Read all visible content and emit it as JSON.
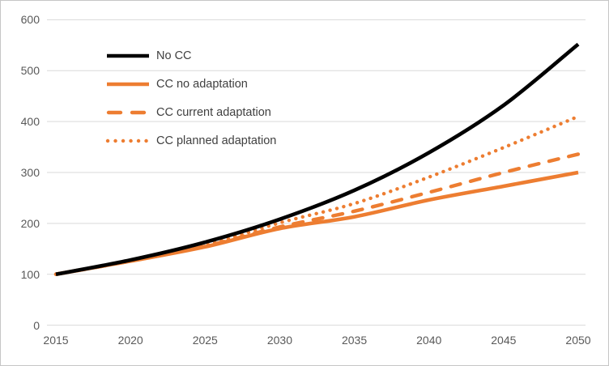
{
  "theme": {
    "background": "#ffffff",
    "frame_border": "#c6c6c6",
    "gridline_color": "#d9d9d9",
    "axis_line_color": "#d9d9d9",
    "axis_text_color": "#595959",
    "legend_text_color": "#404040",
    "accent_orange": "#ED7D31",
    "accent_black": "#000000"
  },
  "chart_data": {
    "type": "line",
    "title": "",
    "xlabel": "",
    "ylabel": "",
    "x": [
      2015,
      2020,
      2025,
      2030,
      2035,
      2040,
      2045,
      2050
    ],
    "x_tick_labels": [
      "2015",
      "2020",
      "2025",
      "2030",
      "2035",
      "2040",
      "2045",
      "2050"
    ],
    "y_tick_labels": [
      "600",
      "500",
      "400",
      "300",
      "200",
      "100",
      "0"
    ],
    "ylim": [
      0,
      600
    ],
    "y_step": 100,
    "grid": true,
    "legend_position": "inside-top-left",
    "series": [
      {
        "name": "No CC",
        "color": "#000000",
        "line_style": "solid",
        "values": [
          100,
          128,
          163,
          208,
          265,
          339,
          432,
          552
        ]
      },
      {
        "name": "CC no adaptation",
        "color": "#ED7D31",
        "line_style": "solid",
        "values": [
          100,
          126,
          154,
          190,
          213,
          246,
          273,
          300
        ]
      },
      {
        "name": "CC current adaptation",
        "color": "#ED7D31",
        "line_style": "dashed",
        "values": [
          100,
          126,
          155,
          193,
          224,
          261,
          300,
          336
        ]
      },
      {
        "name": "CC planned adaptation",
        "color": "#ED7D31",
        "line_style": "dotted",
        "values": [
          100,
          127,
          157,
          201,
          239,
          291,
          349,
          410
        ]
      }
    ]
  }
}
